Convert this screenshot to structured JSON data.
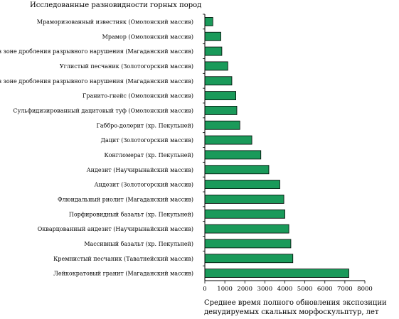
{
  "chart_data": {
    "type": "bar",
    "orientation": "horizontal",
    "title": "Исследованные разновидности горных пород",
    "xlabel_lines": [
      "Среднее время полного обновления экспозиции",
      "денудируемых скальных морфоскульптур, лет"
    ],
    "ylabel": "",
    "xlim": [
      0,
      8000
    ],
    "x_ticks": [
      "0",
      "1000",
      "2000",
      "3000",
      "4000",
      "5000",
      "6000",
      "7000",
      "8000"
    ],
    "grid": false,
    "categories": [
      "Мраморизованный известняк (Омолонский массив)",
      "Мрамор (Омолонский массив)",
      "Гранит в зоне дробления разрывного нарушения (Магаданский массив)",
      "Углистый песчаник (Золотогорский массив)",
      "Гранит в зоне дробления разрывного нарушения (Магаданский массив)",
      "Гранито-гнейс (Омолонский массив)",
      "Сульфидизированный дацитовый туф (Омолонский массив)",
      "Габбро-долерит (хр. Пекульней)",
      "Дацит (Золотогорский массив)",
      "Конгломерат (хр. Пекульней)",
      "Андезит (Научирынайский массив)",
      "Андезит (Золотогорский массив)",
      "Флюидальный риолит (Магаданский массив)",
      "Порфировидный базальт (хр. Пекульней)",
      "Окварцованный андезит (Научирынайский массив)",
      "Массивный базальт (хр. Пекульней)",
      "Кремнистый песчаник (Таватнейский массив)",
      "Лейкократовый гранит (Магаданский массив)"
    ],
    "values": [
      400,
      800,
      850,
      1150,
      1350,
      1550,
      1600,
      1750,
      2350,
      2800,
      3200,
      3750,
      3950,
      4000,
      4200,
      4300,
      4400,
      7200
    ],
    "bar_color": "#1a9a5a",
    "bar_stroke": "#000000"
  }
}
